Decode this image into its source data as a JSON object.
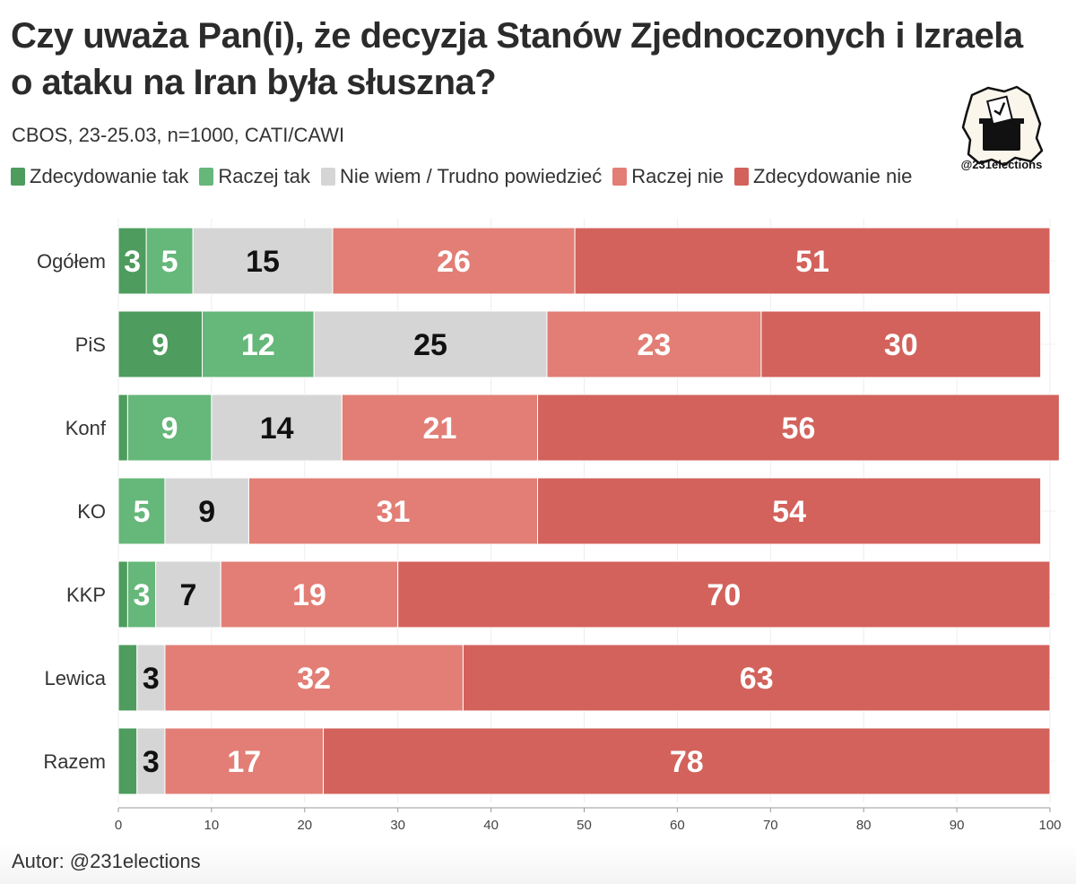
{
  "header": {
    "title": "Czy uważa Pan(i), że decyzja Stanów Zjednoczonych i Izraela o ataku na Iran była słuszna?",
    "subtitle": "CBOS, 23-25.03, n=1000, CATI/CAWI"
  },
  "logo": {
    "handle": "@231elections"
  },
  "footer": {
    "author": "Autor: @231elections"
  },
  "colors": {
    "strong_yes": "#4e9c5e",
    "rather_yes": "#66b77a",
    "dont_know": "#d5d5d5",
    "rather_no": "#e27e75",
    "strong_no": "#d2625b"
  },
  "chart_data": {
    "type": "bar",
    "orientation": "horizontal",
    "stacked": true,
    "title": "Czy uważa Pan(i), że decyzja Stanów Zjednoczonych i Izraela o ataku na Iran była słuszna?",
    "subtitle": "CBOS, 23-25.03, n=1000, CATI/CAWI",
    "xlabel": "",
    "ylabel": "",
    "xlim": [
      0,
      100
    ],
    "xticks": [
      0,
      10,
      20,
      30,
      40,
      50,
      60,
      70,
      80,
      90,
      100
    ],
    "grid": true,
    "legend_position": "top",
    "categories": [
      "Ogółem",
      "PiS",
      "Konf",
      "KO",
      "KKP",
      "Lewica",
      "Razem"
    ],
    "series": [
      {
        "name": "Zdecydowanie tak",
        "color": "#4e9c5e",
        "label_color": "#ffffff",
        "values": [
          3,
          9,
          1,
          0,
          1,
          2,
          2
        ],
        "labels": [
          "3",
          "9",
          "",
          "",
          "",
          "",
          ""
        ]
      },
      {
        "name": "Raczej tak",
        "color": "#66b77a",
        "label_color": "#ffffff",
        "values": [
          5,
          12,
          9,
          5,
          3,
          0,
          0
        ],
        "labels": [
          "5",
          "12",
          "9",
          "5",
          "3",
          "",
          ""
        ]
      },
      {
        "name": "Nie wiem / Trudno powiedzieć",
        "color": "#d5d5d5",
        "label_color": "#111111",
        "values": [
          15,
          25,
          14,
          9,
          7,
          3,
          3
        ],
        "labels": [
          "15",
          "25",
          "14",
          "9",
          "7",
          "3",
          "3"
        ]
      },
      {
        "name": "Raczej nie",
        "color": "#e27e75",
        "label_color": "#ffffff",
        "values": [
          26,
          23,
          21,
          31,
          19,
          32,
          17
        ],
        "labels": [
          "26",
          "23",
          "21",
          "31",
          "19",
          "32",
          "17"
        ]
      },
      {
        "name": "Zdecydowanie nie",
        "color": "#d2625b",
        "label_color": "#ffffff",
        "values": [
          51,
          30,
          56,
          54,
          70,
          63,
          78
        ],
        "labels": [
          "51",
          "30",
          "56",
          "54",
          "70",
          "63",
          "78"
        ]
      }
    ]
  }
}
